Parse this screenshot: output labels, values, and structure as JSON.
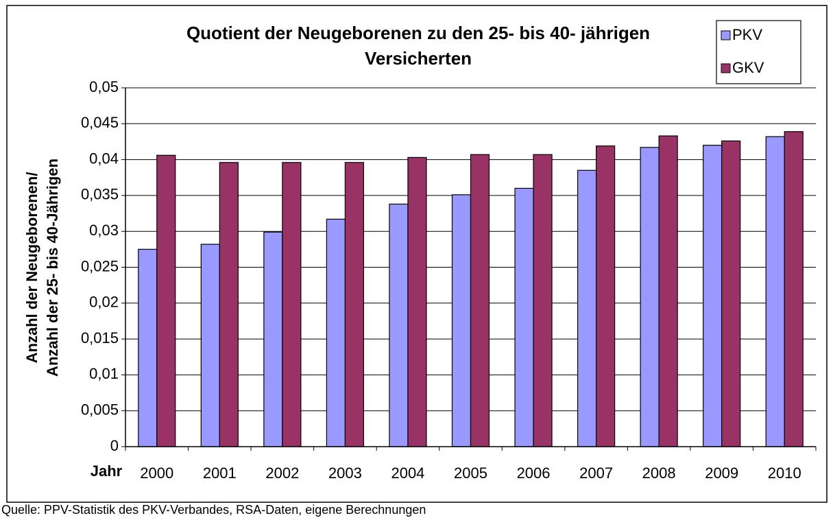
{
  "chart_data": {
    "type": "bar",
    "title": [
      "Quotient der Neugeborenen zu den 25- bis 40- jährigen",
      "Versicherten"
    ],
    "ylabel": [
      "Anzahl der Neugeborenen/",
      "Anzahl der 25- bis 40-Jährigen"
    ],
    "xlabel": "Jahr",
    "source": "Quelle: PPV-Statistik des PKV-Verbandes, RSA-Daten, eigene Berechnungen",
    "categories": [
      "2000",
      "2001",
      "2002",
      "2003",
      "2004",
      "2005",
      "2006",
      "2007",
      "2008",
      "2009",
      "2010"
    ],
    "series": [
      {
        "name": "PKV",
        "color": "#9999ff",
        "values": [
          0.0275,
          0.0282,
          0.0299,
          0.0317,
          0.0338,
          0.0351,
          0.036,
          0.0385,
          0.0417,
          0.042,
          0.0432
        ]
      },
      {
        "name": "GKV",
        "color": "#993366",
        "values": [
          0.0406,
          0.0396,
          0.0396,
          0.0396,
          0.0403,
          0.0407,
          0.0407,
          0.0419,
          0.0433,
          0.0426,
          0.0439
        ]
      }
    ],
    "ylim": [
      0,
      0.05
    ],
    "yticks": [
      0,
      {
        "value": 0.005,
        "label": "0,005"
      },
      {
        "value": 0.01,
        "label": "0,01"
      },
      {
        "value": 0.015,
        "label": "0,015"
      },
      {
        "value": 0.02,
        "label": "0,02"
      },
      {
        "value": 0.025,
        "label": "0,025"
      },
      {
        "value": 0.03,
        "label": "0,03"
      },
      {
        "value": 0.035,
        "label": "0,035"
      },
      {
        "value": 0.04,
        "label": "0,04"
      },
      {
        "value": 0.045,
        "label": "0,045"
      },
      {
        "value": 0.05,
        "label": "0,05"
      }
    ],
    "grid": true,
    "legend": "top-right"
  }
}
